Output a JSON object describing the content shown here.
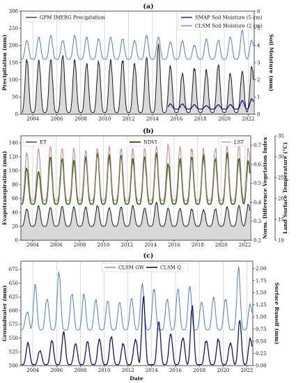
{
  "chart_data": [
    {
      "panel": "(a)",
      "type": "line",
      "title": "(a)",
      "xlabel": "",
      "ylabel_left": "Precipitation (mm)",
      "ylabel_right": "Soil Moisture (mm)",
      "xlim": [
        2003.0,
        2022.5
      ],
      "ylim_left": [
        0,
        300
      ],
      "ylim_right": [
        0,
        6
      ],
      "yticks_left": [
        0,
        50,
        100,
        150,
        200,
        250,
        300
      ],
      "yticks_right": [
        0,
        1,
        2,
        3,
        4,
        5,
        6
      ],
      "xticks": [
        "2004",
        "2006",
        "2008",
        "2010",
        "2012",
        "2014",
        "2016",
        "2018",
        "2020",
        "2022"
      ],
      "grid": "vertical",
      "legend_left": "top-left",
      "legend_right": "top-right",
      "series": [
        {
          "name": "GPM IMERG Precipitation",
          "axis": "left",
          "color": "#1a1a1a",
          "fill": "#d9d9d9",
          "peaks": [
            [
              2003.5,
              160
            ],
            [
              2004.5,
              158
            ],
            [
              2005.5,
              160
            ],
            [
              2006.5,
              172
            ],
            [
              2007.5,
              158
            ],
            [
              2008.5,
              148
            ],
            [
              2009.5,
              155
            ],
            [
              2010.5,
              160
            ],
            [
              2011.5,
              158
            ],
            [
              2012.5,
              148
            ],
            [
              2013.5,
              165
            ],
            [
              2014.5,
              205
            ],
            [
              2015.5,
              140
            ],
            [
              2016.5,
              120
            ],
            [
              2017.5,
              135
            ],
            [
              2018.5,
              130
            ],
            [
              2019.5,
              145
            ],
            [
              2020.5,
              118
            ],
            [
              2021.5,
              125
            ],
            [
              2022.3,
              140
            ]
          ],
          "base": 5
        },
        {
          "name": "CLSM Soil Moisture (2 cm)",
          "axis": "right",
          "color": "#4a7ed0",
          "peaks": [
            [
              2003.5,
              4.3
            ],
            [
              2004.5,
              4.5
            ],
            [
              2005.5,
              4.6
            ],
            [
              2006.5,
              4.3
            ],
            [
              2007.5,
              4.6
            ],
            [
              2008.5,
              4.5
            ],
            [
              2009.5,
              4.4
            ],
            [
              2010.5,
              4.5
            ],
            [
              2011.5,
              4.4
            ],
            [
              2012.5,
              4.3
            ],
            [
              2013.5,
              4.6
            ],
            [
              2014.5,
              4.5
            ],
            [
              2015.5,
              4.2
            ],
            [
              2016.5,
              4.3
            ],
            [
              2017.5,
              4.0
            ],
            [
              2018.5,
              4.4
            ],
            [
              2019.5,
              4.3
            ],
            [
              2020.5,
              4.5
            ],
            [
              2021.5,
              4.9
            ],
            [
              2022.3,
              4.3
            ]
          ],
          "base": 3.2
        },
        {
          "name": "SMAP Soil Moisture (5 cm)",
          "axis": "right",
          "color": "#10107e",
          "x_start": 2015.3,
          "peaks": [
            [
              2015.5,
              0.6
            ],
            [
              2016.5,
              0.6
            ],
            [
              2017.5,
              0.55
            ],
            [
              2018.5,
              0.5
            ],
            [
              2019.5,
              0.55
            ],
            [
              2020.5,
              0.55
            ],
            [
              2021.5,
              0.8
            ],
            [
              2022.3,
              0.9
            ]
          ],
          "base": 0.3
        }
      ]
    },
    {
      "panel": "(b)",
      "type": "line",
      "title": "(b)",
      "xlabel": "",
      "ylabel_left": "Evapotranspiration (mm)",
      "ylabel_right_inner": "Norm. Difference Vegetation Index",
      "ylabel_right_outer": "Land Surface Temperature (°C)",
      "xlim": [
        2003.0,
        2022.5
      ],
      "ylim_left": [
        0,
        150
      ],
      "ylim_ndvi": [
        0.2,
        0.75
      ],
      "ylim_lst": [
        10,
        35
      ],
      "yticks_left": [
        0,
        20,
        40,
        60,
        80,
        100,
        120,
        140
      ],
      "yticks_ndvi": [
        0.2,
        0.3,
        0.4,
        0.5,
        0.6,
        0.7
      ],
      "yticks_lst": [
        10,
        15,
        20,
        25,
        30,
        35
      ],
      "xticks": [
        "2004",
        "2006",
        "2008",
        "2010",
        "2012",
        "2014",
        "2016",
        "2018",
        "2020",
        "2022"
      ],
      "grid": "vertical",
      "series": [
        {
          "name": "ET",
          "axis": "left",
          "color": "#1a1a1a",
          "fill": "#d9d9d9",
          "peaks": [
            [
              2003.5,
              45
            ],
            [
              2004.5,
              50
            ],
            [
              2005.5,
              47
            ],
            [
              2006.5,
              49
            ],
            [
              2007.5,
              48
            ],
            [
              2008.5,
              48
            ],
            [
              2009.5,
              50
            ],
            [
              2010.5,
              47
            ],
            [
              2011.5,
              48
            ],
            [
              2012.5,
              50
            ],
            [
              2013.5,
              46
            ],
            [
              2014.5,
              55
            ],
            [
              2015.5,
              46
            ],
            [
              2016.5,
              46
            ],
            [
              2017.5,
              45
            ],
            [
              2018.5,
              44
            ],
            [
              2019.5,
              45
            ],
            [
              2020.5,
              48
            ],
            [
              2021.5,
              50
            ],
            [
              2022.3,
              52
            ]
          ],
          "base": 20
        },
        {
          "name": "NDVI",
          "axis": "ndvi",
          "color": "#2e6e1e",
          "peaks": [
            [
              2003.5,
              0.58
            ],
            [
              2004.5,
              0.56
            ],
            [
              2005.5,
              0.64
            ],
            [
              2006.5,
              0.63
            ],
            [
              2007.5,
              0.62
            ],
            [
              2008.5,
              0.64
            ],
            [
              2009.5,
              0.66
            ],
            [
              2010.5,
              0.65
            ],
            [
              2011.5,
              0.65
            ],
            [
              2012.5,
              0.63
            ],
            [
              2013.5,
              0.64
            ],
            [
              2014.5,
              0.66
            ],
            [
              2015.5,
              0.6
            ],
            [
              2016.5,
              0.63
            ],
            [
              2017.5,
              0.64
            ],
            [
              2018.5,
              0.65
            ],
            [
              2019.5,
              0.63
            ],
            [
              2020.5,
              0.66
            ],
            [
              2021.5,
              0.63
            ],
            [
              2022.3,
              0.62
            ]
          ],
          "base": 0.39
        },
        {
          "name": "LST",
          "axis": "lst",
          "color": "#c88080",
          "peaks": [
            [
              2003.5,
              31
            ],
            [
              2004.5,
              32
            ],
            [
              2005.5,
              32.5
            ],
            [
              2006.5,
              32
            ],
            [
              2007.5,
              32
            ],
            [
              2008.5,
              31.5
            ],
            [
              2009.5,
              32
            ],
            [
              2010.5,
              32.5
            ],
            [
              2011.5,
              32
            ],
            [
              2012.5,
              32
            ],
            [
              2013.5,
              32
            ],
            [
              2014.5,
              32.5
            ],
            [
              2015.5,
              33
            ],
            [
              2016.5,
              32.5
            ],
            [
              2017.5,
              32
            ],
            [
              2018.5,
              32
            ],
            [
              2019.5,
              32
            ],
            [
              2020.5,
              32.5
            ],
            [
              2021.5,
              33
            ],
            [
              2022.3,
              32
            ]
          ],
          "base": 19.5
        }
      ]
    },
    {
      "panel": "(c)",
      "type": "line",
      "title": "(c)",
      "xlabel": "Date",
      "ylabel_left": "Groundwater (mm)",
      "ylabel_right": "Surface Runoff (mm)",
      "xlim": [
        2003.0,
        2022.5
      ],
      "ylim_left": [
        500,
        690
      ],
      "ylim_right": [
        0,
        2.15
      ],
      "yticks_left": [
        500,
        525,
        550,
        575,
        600,
        625,
        650,
        675
      ],
      "yticks_right": [
        0.0,
        0.25,
        0.5,
        0.75,
        1.0,
        1.25,
        1.5,
        1.75,
        2.0
      ],
      "xticks": [
        "2004",
        "2006",
        "2008",
        "2010",
        "2012",
        "2014",
        "2016",
        "2018",
        "2020",
        "2022"
      ],
      "grid": "vertical",
      "legend": "top-center",
      "series": [
        {
          "name": "CLSM GW",
          "axis": "left",
          "color": "#4a7ed0",
          "peaks": [
            [
              2003.5,
              595
            ],
            [
              2004.2,
              650
            ],
            [
              2005.2,
              620
            ],
            [
              2006.2,
              672
            ],
            [
              2007.3,
              630
            ],
            [
              2008.3,
              630
            ],
            [
              2009.3,
              620
            ],
            [
              2010.3,
              618
            ],
            [
              2011.3,
              615
            ],
            [
              2012.3,
              622
            ],
            [
              2013.2,
              650
            ],
            [
              2014.2,
              640
            ],
            [
              2015.3,
              620
            ],
            [
              2016.2,
              640
            ],
            [
              2017.2,
              645
            ],
            [
              2018.2,
              615
            ],
            [
              2019.2,
              625
            ],
            [
              2020.2,
              620
            ],
            [
              2021.3,
              680
            ],
            [
              2022.3,
              610
            ]
          ],
          "base": 565
        },
        {
          "name": "CLSM Q",
          "axis": "right",
          "color": "#10107e",
          "peaks": [
            [
              2003.6,
              0.48
            ],
            [
              2004.6,
              0.3
            ],
            [
              2005.6,
              0.52
            ],
            [
              2006.6,
              0.7
            ],
            [
              2007.6,
              0.45
            ],
            [
              2008.6,
              0.5
            ],
            [
              2009.6,
              0.55
            ],
            [
              2010.6,
              0.6
            ],
            [
              2011.6,
              0.45
            ],
            [
              2012.6,
              0.5
            ],
            [
              2013.3,
              1.45
            ],
            [
              2014.6,
              0.9
            ],
            [
              2015.6,
              0.65
            ],
            [
              2016.6,
              0.55
            ],
            [
              2017.4,
              1.25
            ],
            [
              2018.6,
              0.5
            ],
            [
              2019.6,
              0.55
            ],
            [
              2020.6,
              0.45
            ],
            [
              2021.4,
              0.95
            ],
            [
              2022.3,
              0.55
            ]
          ],
          "base": 0.02
        }
      ]
    }
  ]
}
